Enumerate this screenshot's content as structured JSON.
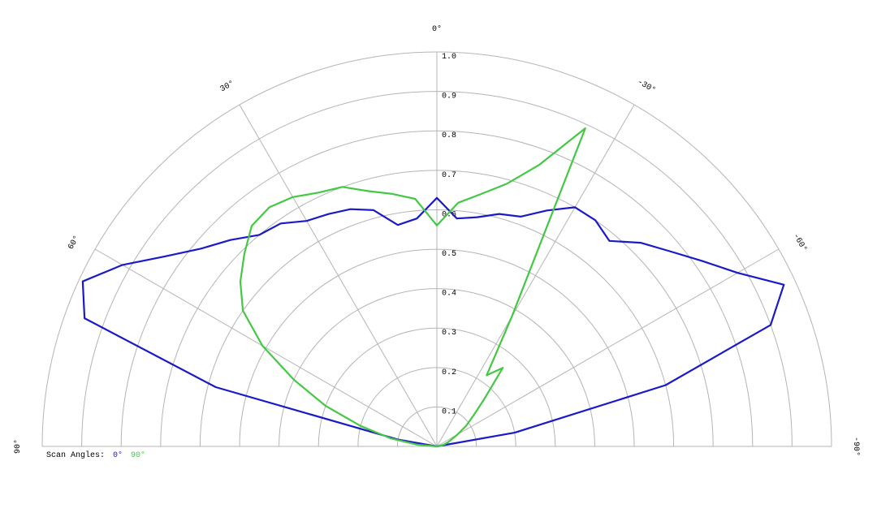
{
  "chart_data": {
    "type": "polar",
    "x": [
      90,
      85,
      80,
      75,
      70,
      65,
      60,
      55,
      50,
      45,
      40,
      35,
      30,
      25,
      20,
      15,
      10,
      5,
      0,
      -5,
      -10,
      -15,
      -20,
      -25,
      -30,
      -35,
      -40,
      -45,
      -50,
      -55,
      -60,
      -65,
      -70,
      -75,
      -80,
      -85,
      -90
    ],
    "series": [
      {
        "name": "0°",
        "color": "#1a1ac8",
        "values": [
          0,
          0,
          0.1,
          0.58,
          0.95,
          0.99,
          0.92,
          0.84,
          0.78,
          0.74,
          0.7,
          0.69,
          0.66,
          0.65,
          0.64,
          0.62,
          0.57,
          0.58,
          0.63,
          0.58,
          0.59,
          0.61,
          0.62,
          0.66,
          0.7,
          0.7,
          0.68,
          0.73,
          0.77,
          0.82,
          0.88,
          0.97,
          0.9,
          0.6,
          0.2,
          0,
          0
        ]
      },
      {
        "name": "90°",
        "color": "#44c844",
        "values": [
          0,
          0.05,
          0.12,
          0.2,
          0.3,
          0.4,
          0.51,
          0.6,
          0.65,
          0.69,
          0.73,
          0.74,
          0.73,
          0.71,
          0.7,
          0.67,
          0.65,
          0.63,
          0.56,
          0.62,
          0.65,
          0.69,
          0.76,
          0.89,
          0.38,
          0.22,
          0.26,
          0.17,
          0.12,
          0.09,
          0.06,
          0.04,
          0.03,
          0.02,
          0.01,
          0,
          0
        ]
      }
    ],
    "rlim": [
      0,
      1
    ],
    "rticks": [
      0.1,
      0.2,
      0.3,
      0.4,
      0.5,
      0.6,
      0.7,
      0.8,
      0.9,
      {
        "value": 1,
        "label": "1.0"
      }
    ],
    "thetaticks": [
      {
        "value": 90,
        "label": "90°"
      },
      {
        "value": 60,
        "label": "60°"
      },
      {
        "value": 30,
        "label": "30°"
      },
      {
        "value": 0,
        "label": "0°"
      },
      {
        "value": -30,
        "label": "-30°"
      },
      {
        "value": -60,
        "label": "-60°"
      },
      {
        "value": -90,
        "label": "-90°"
      }
    ],
    "legend_title": "Scan Angles:"
  }
}
